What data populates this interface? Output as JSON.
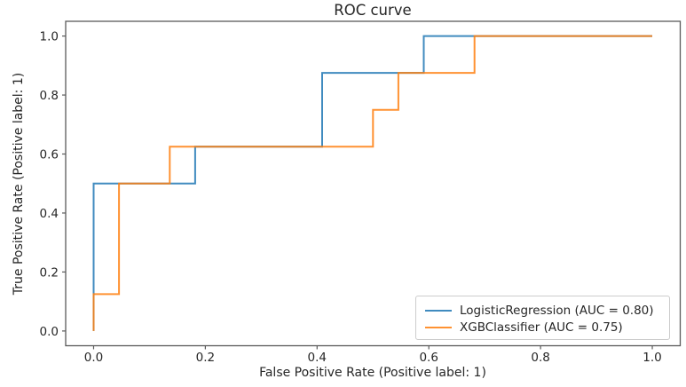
{
  "chart_data": {
    "type": "line",
    "subtype": "roc-step-curve",
    "title": "ROC curve",
    "xlabel": "False Positive Rate (Positive label: 1)",
    "ylabel": "True Positive Rate (Positive label: 1)",
    "xlim": [
      -0.05,
      1.05
    ],
    "ylim": [
      -0.05,
      1.05
    ],
    "x_ticks": [
      "0.0",
      "0.2",
      "0.4",
      "0.6",
      "0.8",
      "1.0"
    ],
    "y_ticks": [
      "0.0",
      "0.2",
      "0.4",
      "0.6",
      "0.8",
      "1.0"
    ],
    "grid": false,
    "legend_position": "lower right",
    "series": [
      {
        "name": "LogisticRegression",
        "auc": "0.80",
        "legend_label": "LogisticRegression (AUC = 0.80)",
        "color": "#1f77b4",
        "points": [
          [
            0.0,
            0.0
          ],
          [
            0.0,
            0.5
          ],
          [
            0.1818,
            0.5
          ],
          [
            0.1818,
            0.625
          ],
          [
            0.4091,
            0.625
          ],
          [
            0.4091,
            0.875
          ],
          [
            0.5909,
            0.875
          ],
          [
            0.5909,
            1.0
          ],
          [
            1.0,
            1.0
          ]
        ]
      },
      {
        "name": "XGBClassifier",
        "auc": "0.75",
        "legend_label": "XGBClassifier (AUC = 0.75)",
        "color": "#ff7f0e",
        "points": [
          [
            0.0,
            0.0
          ],
          [
            0.0,
            0.125
          ],
          [
            0.0455,
            0.125
          ],
          [
            0.0455,
            0.5
          ],
          [
            0.1364,
            0.5
          ],
          [
            0.1364,
            0.625
          ],
          [
            0.5,
            0.625
          ],
          [
            0.5,
            0.75
          ],
          [
            0.5455,
            0.75
          ],
          [
            0.5455,
            0.875
          ],
          [
            0.6818,
            0.875
          ],
          [
            0.6818,
            1.0
          ],
          [
            1.0,
            1.0
          ]
        ]
      }
    ]
  }
}
